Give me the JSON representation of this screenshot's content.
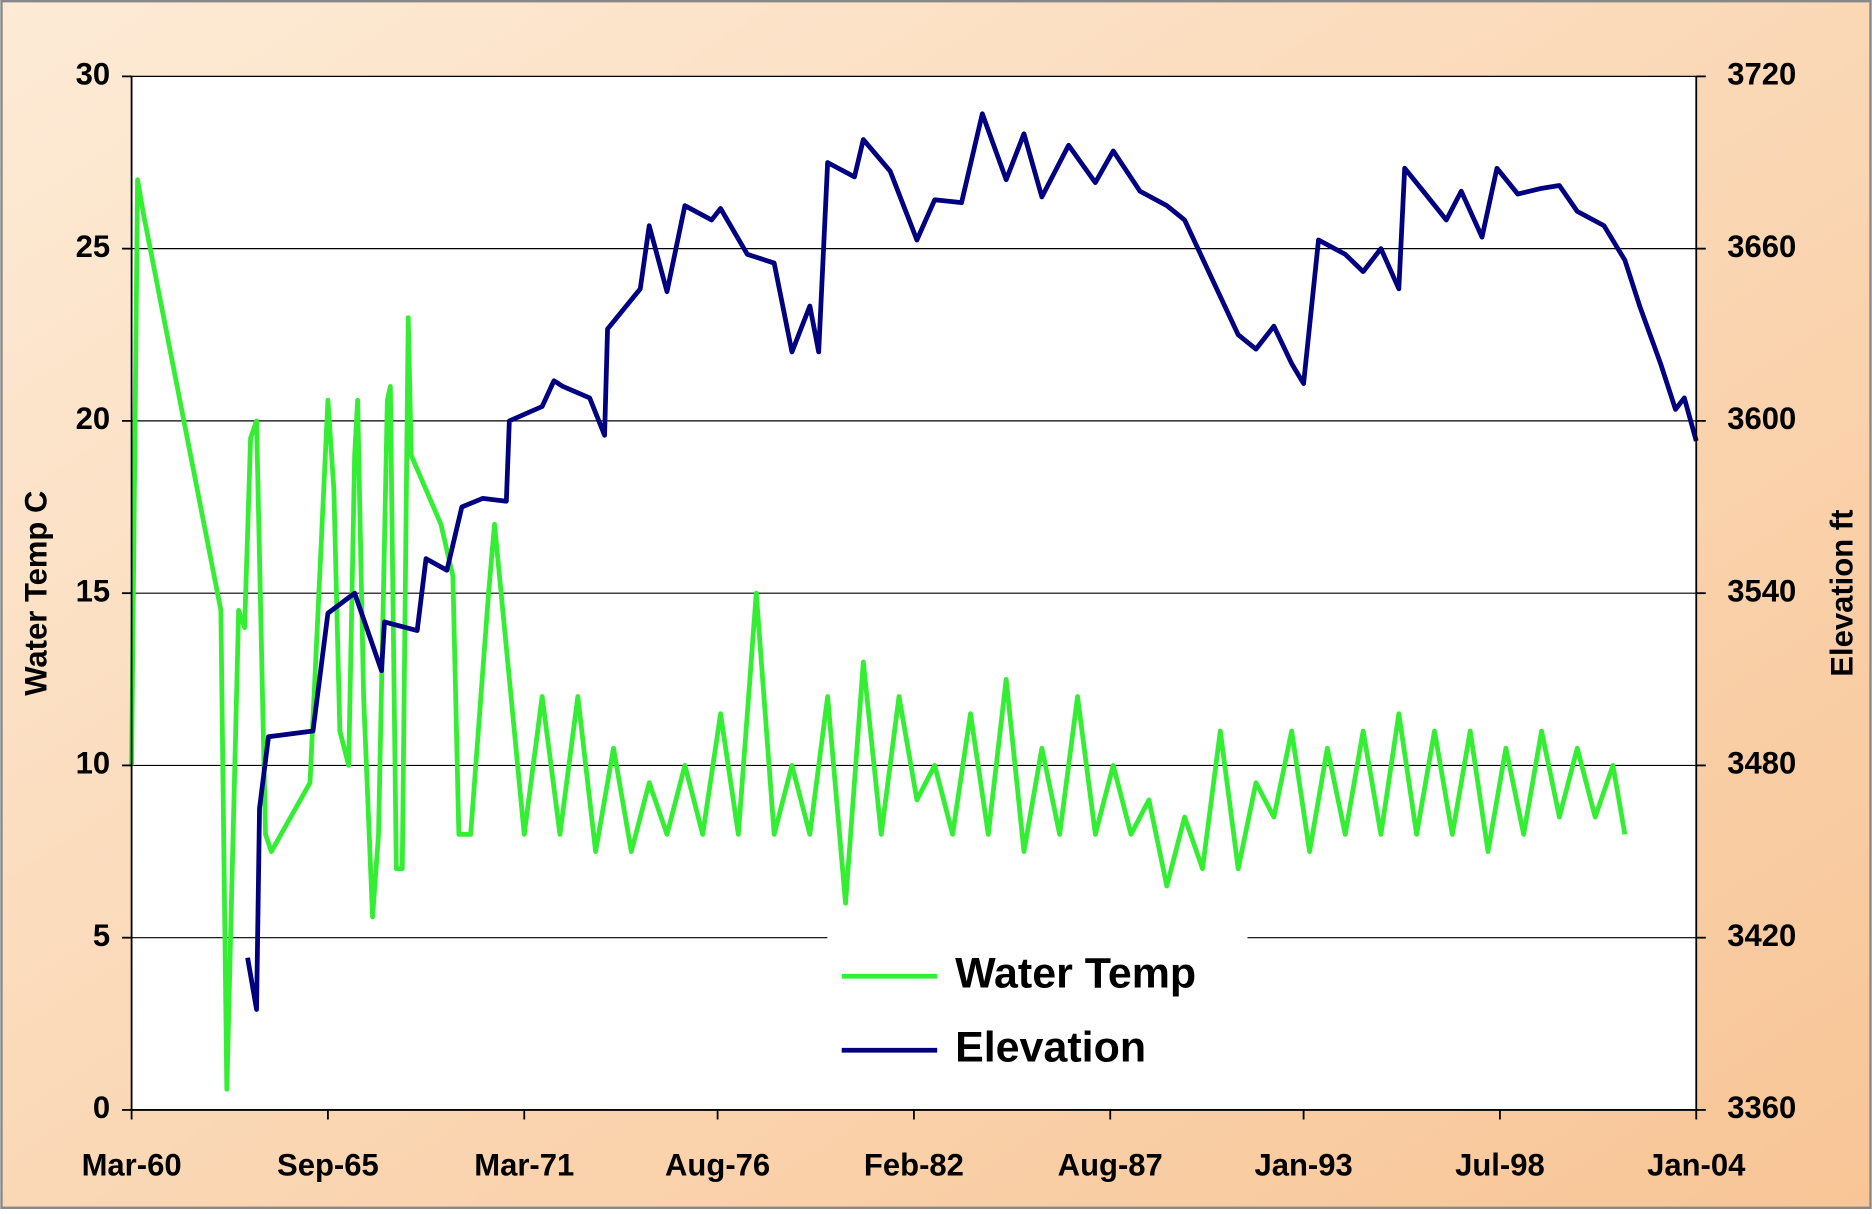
{
  "chart_data": {
    "type": "line",
    "y_label": "Water Temp C",
    "y2_label": "Elevation ft",
    "xlim": [
      "1960-03",
      "2004-01"
    ],
    "xticks": [
      {
        "value": "1960-03",
        "label": "Mar-60"
      },
      {
        "value": "1965-09",
        "label": "Sep-65"
      },
      {
        "value": "1971-03",
        "label": "Mar-71"
      },
      {
        "value": "1976-08",
        "label": "Aug-76"
      },
      {
        "value": "1982-02",
        "label": "Feb-82"
      },
      {
        "value": "1987-08",
        "label": "Aug-87"
      },
      {
        "value": "1993-01",
        "label": "Jan-93"
      },
      {
        "value": "1998-07",
        "label": "Jul-98"
      },
      {
        "value": "2004-01",
        "label": "Jan-04"
      }
    ],
    "ylim": [
      0,
      30
    ],
    "yticks": [
      0,
      5,
      10,
      15,
      20,
      25,
      30
    ],
    "y2lim": [
      3360,
      3720
    ],
    "y2ticks": [
      3360,
      3420,
      3480,
      3540,
      3600,
      3660,
      3720
    ],
    "grid": true,
    "legend": "bottom",
    "series": [
      {
        "name": "Water Temp",
        "color": "#33ee33",
        "axis": "y",
        "x": [
          "1960-03",
          "1960-05",
          "1960-07",
          "1962-09",
          "1962-11",
          "1963-03",
          "1963-05",
          "1963-07",
          "1963-09",
          "1963-12",
          "1964-02",
          "1965-03",
          "1965-09",
          "1965-11",
          "1966-01",
          "1966-04",
          "1966-06",
          "1966-07",
          "1966-09",
          "1966-12",
          "1967-02",
          "1967-05",
          "1967-06",
          "1967-08",
          "1967-10",
          "1967-12",
          "1968-01",
          "1968-11",
          "1969-03",
          "1969-05",
          "1969-09",
          "1970-03",
          "1970-05",
          "1971-03",
          "1971-09",
          "1972-03",
          "1972-09",
          "1973-03",
          "1973-09",
          "1974-03",
          "1974-09",
          "1975-03",
          "1975-09",
          "1976-03",
          "1976-09",
          "1977-03",
          "1977-09",
          "1978-03",
          "1978-09",
          "1979-03",
          "1979-09",
          "1980-03",
          "1980-09",
          "1981-03",
          "1981-09",
          "1982-03",
          "1982-09",
          "1983-03",
          "1983-09",
          "1984-03",
          "1984-09",
          "1985-03",
          "1985-09",
          "1986-03",
          "1986-09",
          "1987-03",
          "1987-09",
          "1988-03",
          "1988-09",
          "1989-03",
          "1989-09",
          "1990-03",
          "1990-09",
          "1991-03",
          "1991-09",
          "1992-03",
          "1992-09",
          "1993-03",
          "1993-09",
          "1994-03",
          "1994-09",
          "1995-03",
          "1995-09",
          "1996-03",
          "1996-09",
          "1997-03",
          "1997-09",
          "1998-03",
          "1998-09",
          "1999-03",
          "1999-09",
          "2000-03",
          "2000-09",
          "2001-03",
          "2001-09",
          "2002-01"
        ],
        "values": [
          10,
          27,
          26,
          14.5,
          0.6,
          14.5,
          14,
          19.5,
          20,
          8,
          7.5,
          9.5,
          20.6,
          18,
          11,
          10,
          19,
          20.6,
          12,
          5.6,
          8,
          20.6,
          21,
          7,
          7,
          23,
          19,
          17,
          15.5,
          8,
          8,
          15,
          17,
          8,
          12,
          8,
          12,
          7.5,
          10.5,
          7.5,
          9.5,
          8,
          10,
          8,
          11.5,
          8,
          15,
          8,
          10,
          8,
          12,
          6,
          13,
          8,
          12,
          9,
          10,
          8,
          11.5,
          8,
          12.5,
          7.5,
          10.5,
          8,
          12,
          8,
          10,
          8,
          9,
          6.5,
          8.5,
          7,
          11,
          7,
          9.5,
          8.5,
          11,
          7.5,
          10.5,
          8,
          11,
          8,
          11.5,
          8,
          11,
          8,
          11,
          7.5,
          10.5,
          8,
          11,
          8.5,
          10.5,
          8.5,
          10,
          8
        ]
      },
      {
        "name": "Elevation",
        "color": "#000080",
        "axis": "y2",
        "x": [
          "1963-06",
          "1963-09",
          "1963-10",
          "1964-01",
          "1965-04",
          "1965-09",
          "1966-06",
          "1967-03",
          "1967-04",
          "1968-03",
          "1968-06",
          "1969-01",
          "1969-06",
          "1970-01",
          "1970-09",
          "1970-10",
          "1971-09",
          "1972-01",
          "1972-04",
          "1973-01",
          "1973-06",
          "1973-07",
          "1974-06",
          "1974-09",
          "1975-03",
          "1975-09",
          "1976-06",
          "1976-09",
          "1977-06",
          "1978-03",
          "1978-09",
          "1979-03",
          "1979-06",
          "1979-09",
          "1980-06",
          "1980-09",
          "1981-06",
          "1982-03",
          "1982-09",
          "1983-06",
          "1984-01",
          "1984-09",
          "1985-03",
          "1985-09",
          "1986-06",
          "1987-03",
          "1987-09",
          "1988-06",
          "1989-03",
          "1989-09",
          "1990-06",
          "1991-03",
          "1991-09",
          "1992-03",
          "1992-09",
          "1993-01",
          "1993-06",
          "1994-03",
          "1994-09",
          "1995-03",
          "1995-09",
          "1995-11",
          "1996-06",
          "1997-01",
          "1997-06",
          "1998-01",
          "1998-06",
          "1999-01",
          "1999-09",
          "2000-03",
          "2000-09",
          "2001-06",
          "2002-01",
          "2002-06",
          "2003-01",
          "2003-06",
          "2003-09",
          "2004-01"
        ],
        "values": [
          3413,
          3395,
          3465,
          3490,
          3492,
          3533,
          3540,
          3513,
          3530,
          3527,
          3552,
          3548,
          3570,
          3573,
          3572,
          3600,
          3605,
          3614,
          3612,
          3608,
          3595,
          3632,
          3646,
          3668,
          3645,
          3675,
          3670,
          3674,
          3658,
          3655,
          3624,
          3640,
          3624,
          3690,
          3685,
          3698,
          3687,
          3663,
          3677,
          3676,
          3707,
          3684,
          3700,
          3678,
          3696,
          3683,
          3694,
          3680,
          3675,
          3670,
          3650,
          3630,
          3625,
          3633,
          3620,
          3613,
          3663,
          3658,
          3652,
          3660,
          3646,
          3688,
          3679,
          3670,
          3680,
          3664,
          3688,
          3679,
          3681,
          3682,
          3673,
          3668,
          3656,
          3640,
          3620,
          3604,
          3608,
          3593
        ]
      }
    ]
  }
}
